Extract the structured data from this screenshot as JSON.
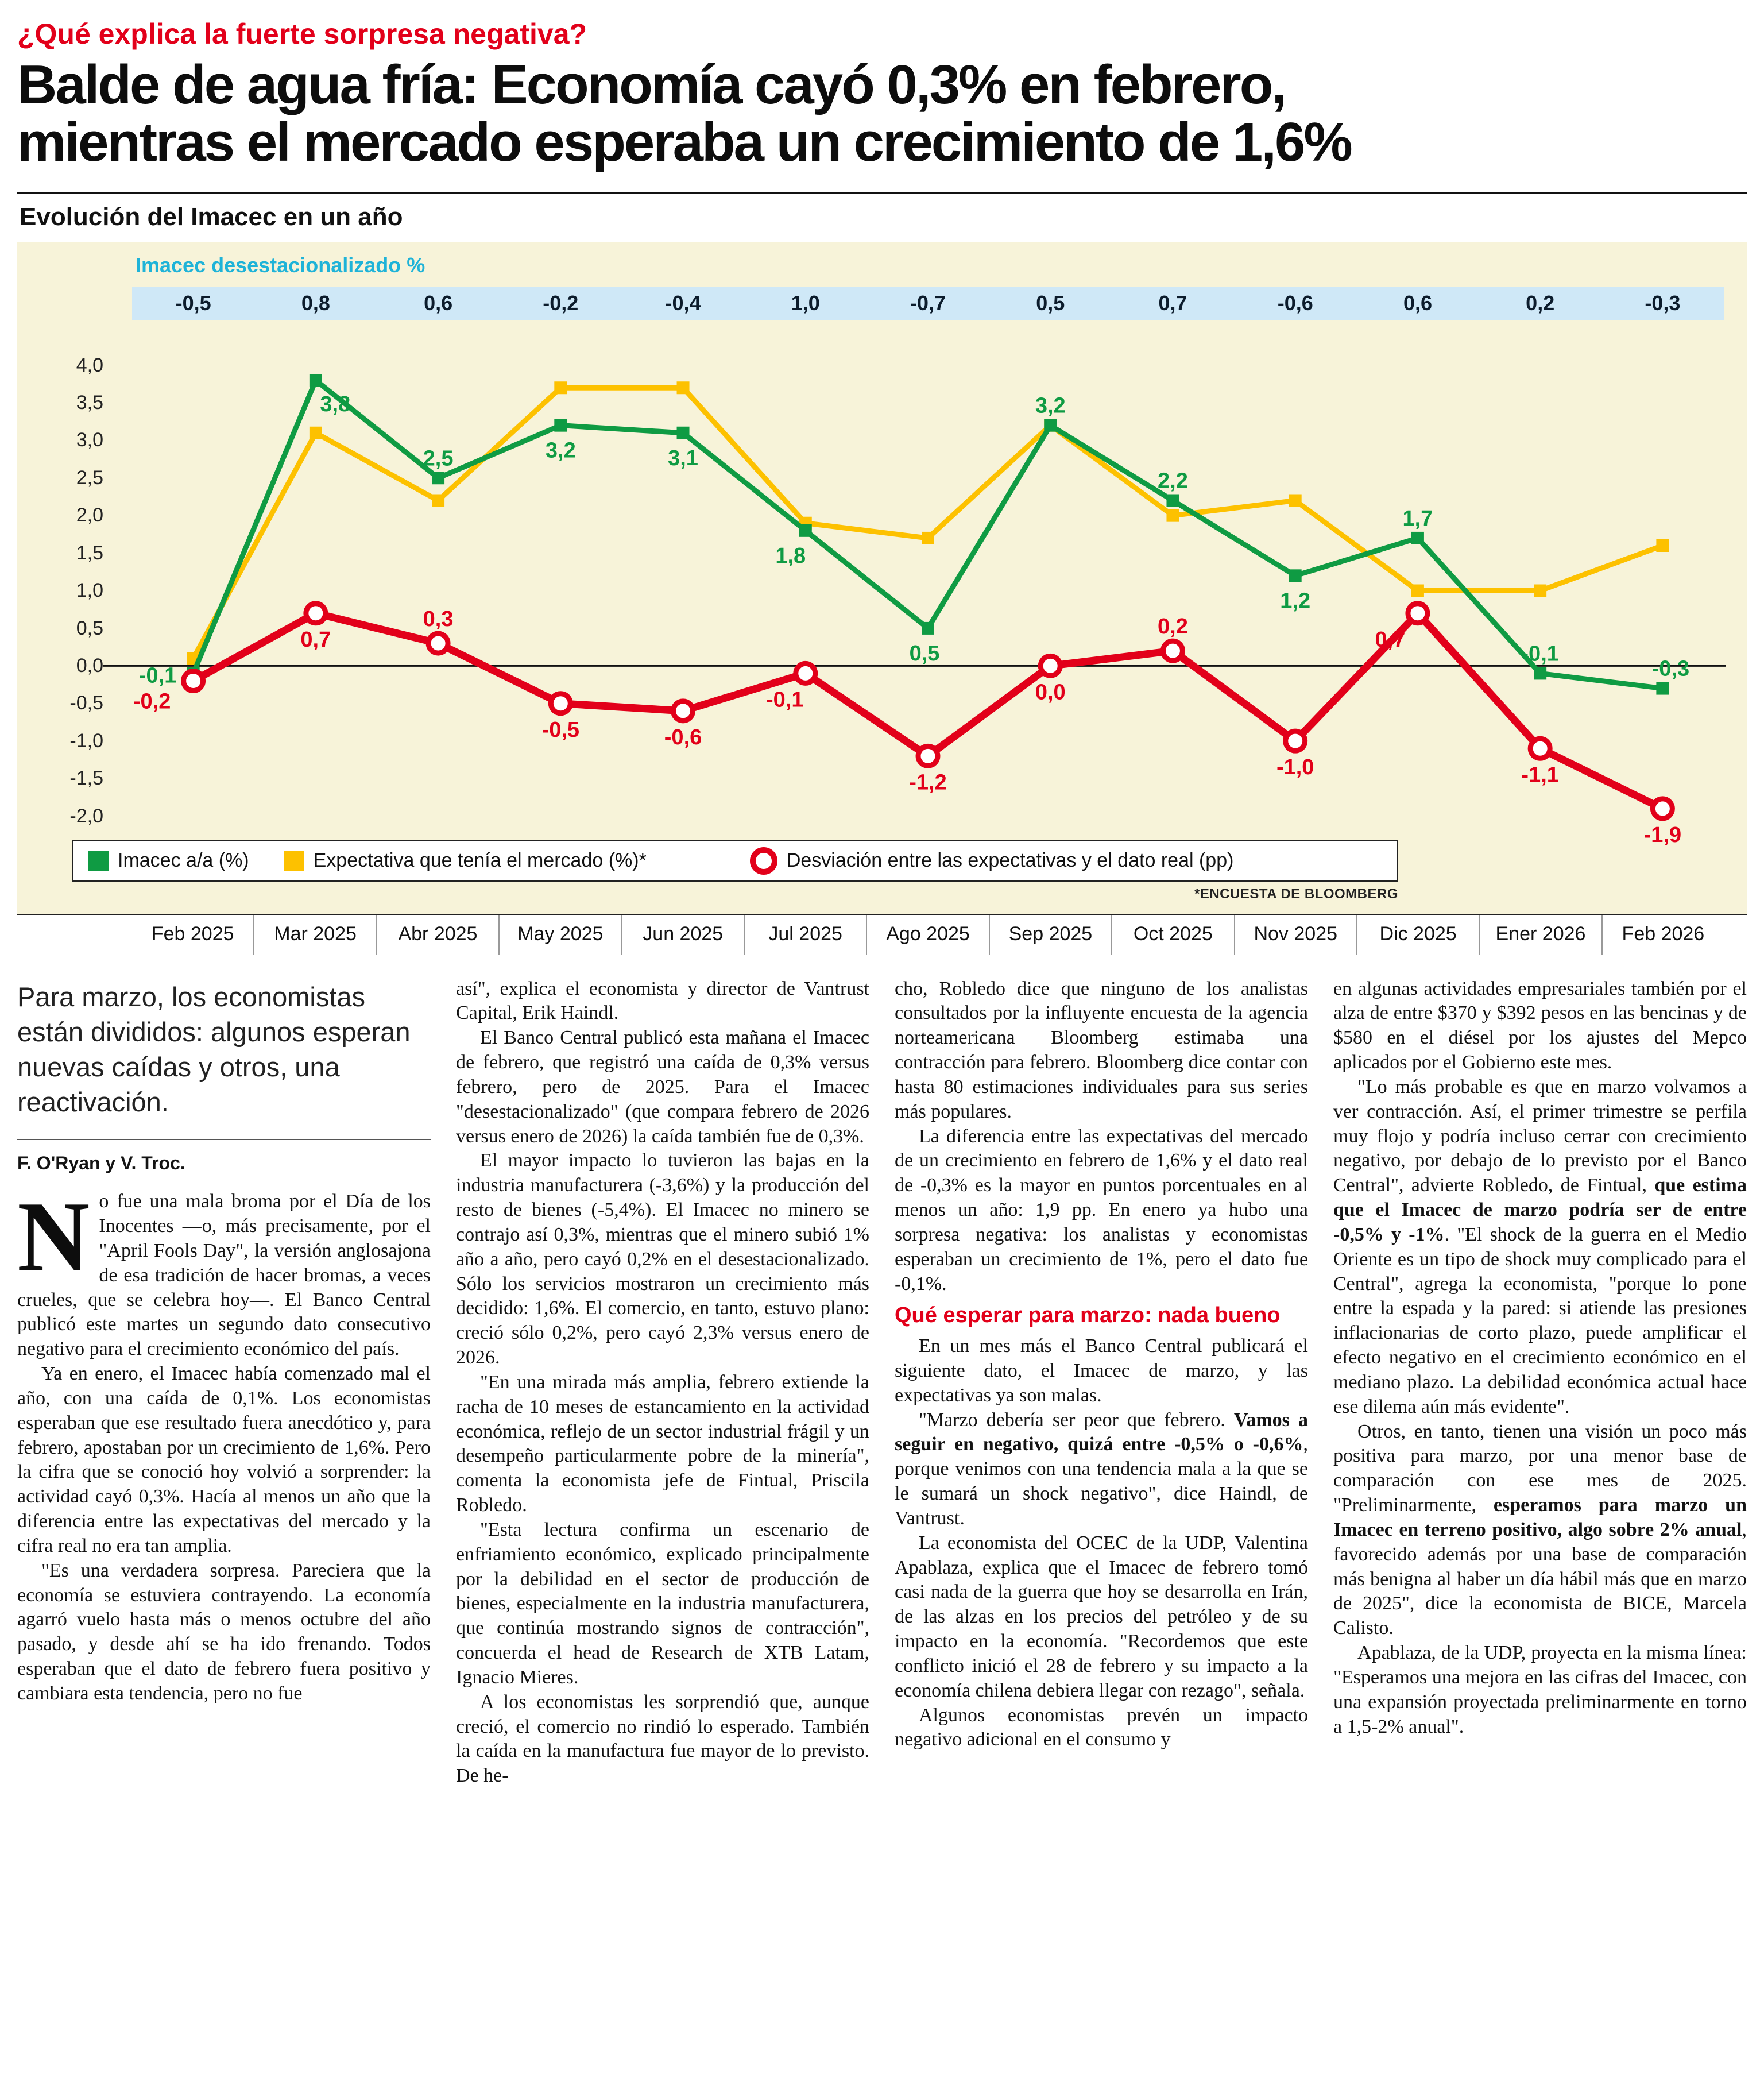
{
  "kicker": "¿Qué explica la fuerte sorpresa negativa?",
  "headline_lines": [
    "Balde de agua fría: Economía cayó 0,3% en febrero,",
    "mientras el mercado esperaba un crecimiento de 1,6%"
  ],
  "colors": {
    "accent_red": "#e2001a",
    "green": "#0f9b43",
    "yellow": "#fdc100",
    "cyan": "#1fb3d8",
    "band_blue": "#cfe8f7",
    "chart_bg": "#f7f3d9"
  },
  "chart_data": {
    "type": "line",
    "title": "Evolución del Imacec en un año",
    "strip_label": "Imacec desestacionalizado %",
    "strip_values": [
      "-0,5",
      "0,8",
      "0,6",
      "-0,2",
      "-0,4",
      "1,0",
      "-0,7",
      "0,5",
      "0,7",
      "-0,6",
      "0,6",
      "0,2",
      "-0,3"
    ],
    "categories": [
      "Feb 2025",
      "Mar 2025",
      "Abr 2025",
      "May 2025",
      "Jun 2025",
      "Jul 2025",
      "Ago 2025",
      "Sep 2025",
      "Oct 2025",
      "Nov 2025",
      "Dic 2025",
      "Ener 2026",
      "Feb 2026"
    ],
    "ylim": [
      -2.0,
      4.0
    ],
    "ytick_step": 0.5,
    "yticks": [
      "4,0",
      "3,5",
      "3,0",
      "2,5",
      "2,0",
      "1,5",
      "1,0",
      "0,5",
      "0,0",
      "-0,5",
      "-1,0",
      "-1,5",
      "-2,0"
    ],
    "grid": false,
    "legend_position": "bottom-inside",
    "series": [
      {
        "name": "Imacec a/a (%)",
        "color": "#0f9b43",
        "marker": "square",
        "values": [
          -0.1,
          3.8,
          2.5,
          3.2,
          3.1,
          1.8,
          0.5,
          3.2,
          2.2,
          1.2,
          1.7,
          -0.1,
          -0.3
        ],
        "labels": [
          "-0,1",
          "3,8",
          "2,5",
          "3,2",
          "3,1",
          "1,8",
          "0,5",
          "3,2",
          "2,2",
          "1,2",
          "1,7",
          "-0,1",
          "-0,3"
        ]
      },
      {
        "name": "Expectativa que tenía el mercado (%)*",
        "color": "#fdc100",
        "marker": "square",
        "values": [
          0.1,
          3.1,
          2.2,
          3.7,
          3.7,
          1.9,
          1.7,
          3.2,
          2.0,
          2.2,
          1.0,
          1.0,
          1.6
        ],
        "labels": [
          null,
          null,
          null,
          null,
          null,
          null,
          null,
          null,
          null,
          null,
          null,
          null,
          null
        ]
      },
      {
        "name": "Desviación entre las expectativas y el dato real (pp)",
        "color": "#e2001a",
        "marker": "ring",
        "values": [
          -0.2,
          0.7,
          0.3,
          -0.5,
          -0.6,
          -0.1,
          -1.2,
          0.0,
          0.2,
          -1.0,
          0.7,
          -1.1,
          -1.9
        ],
        "labels": [
          "-0,2",
          "0,7",
          "0,3",
          "-0,5",
          "-0,6",
          "-0,1",
          "-1,2",
          "0,0",
          "0,2",
          "-1,0",
          "0,7",
          "-1,1",
          "-1,9"
        ]
      }
    ],
    "footnote": "*ENCUESTA DE BLOOMBERG"
  },
  "article": {
    "deck": "Para marzo, los economistas están divididos: algunos esperan nuevas caídas y otros, una reactivación.",
    "byline": "F. O'Ryan y V. Troc.",
    "columns": [
      {
        "blocks": [
          {
            "type": "deck"
          },
          {
            "type": "byline"
          },
          {
            "type": "dropcap",
            "letter": "N",
            "segments": [
              {
                "t": "o fue una mala broma por el Día de los Inocentes —o, más precisamente, por el \"April Fools Day\", la versión anglosajona de esa tradición de hacer bromas, a veces crueles, que se celebra hoy—. El Banco Central publicó este martes un segundo dato consecutivo negativo para el crecimiento económico del país.",
                "b": false
              }
            ]
          },
          {
            "type": "p",
            "indent": true,
            "segments": [
              {
                "t": "Ya en enero, el Imacec había comenzado mal el año, con una caída de 0,1%. Los economistas esperaban que ese resultado fuera anecdótico y, para febrero, apostaban por un crecimiento de 1,6%. Pero la cifra que se conoció hoy volvió a sorprender: la actividad cayó 0,3%. Hacía al menos un año que la diferencia entre las expectativas del mercado y la cifra real no era tan amplia.",
                "b": false
              }
            ]
          },
          {
            "type": "p",
            "indent": true,
            "segments": [
              {
                "t": "\"Es una verdadera sorpresa. Pareciera que la economía se estuviera contrayendo. La economía agarró vuelo hasta más o menos octubre del año pasado, y desde ahí se ha ido frenando. Todos esperaban que el dato de febrero fuera positivo y cambiara esta tendencia, pero no fue",
                "b": false
              }
            ]
          }
        ]
      },
      {
        "blocks": [
          {
            "type": "p",
            "indent": false,
            "segments": [
              {
                "t": "así\", explica el economista y director de Vantrust Capital, Erik Haindl.",
                "b": false
              }
            ]
          },
          {
            "type": "p",
            "indent": true,
            "segments": [
              {
                "t": "El Banco Central publicó esta mañana el Imacec de febrero, que registró una caída de 0,3% versus febrero, pero de 2025. Para el Imacec \"desestacionalizado\" (que compara febrero de 2026 versus enero de 2026) la caída también fue de 0,3%.",
                "b": false
              }
            ]
          },
          {
            "type": "p",
            "indent": true,
            "segments": [
              {
                "t": "El mayor impacto lo tuvieron las bajas en la industria manufacturera (-3,6%) y la producción del resto de bienes (-5,4%). El Imacec no minero se contrajo así 0,3%, mientras que el minero subió 1% año a año, pero cayó 0,2% en el desestacionalizado. Sólo los servicios mostraron un crecimiento más decidido: 1,6%. El comercio, en tanto, estuvo plano: creció sólo 0,2%, pero cayó 2,3% versus enero de 2026.",
                "b": false
              }
            ]
          },
          {
            "type": "p",
            "indent": true,
            "segments": [
              {
                "t": "\"En una mirada más amplia, febrero extiende la racha de 10 meses de estancamiento en la actividad económica, reflejo de un sector industrial frágil y un desempeño particularmente pobre de la minería\", comenta la economista jefe de Fintual, Priscila Robledo.",
                "b": false
              }
            ]
          },
          {
            "type": "p",
            "indent": true,
            "segments": [
              {
                "t": "\"Esta lectura confirma un escenario de enfriamiento económico, explicado principalmente por la debilidad en el sector de producción de bienes, especialmente en la industria manufacturera, que continúa mostrando signos de contracción\", concuerda el head de Research de XTB Latam, Ignacio Mieres.",
                "b": false
              }
            ]
          },
          {
            "type": "p",
            "indent": true,
            "segments": [
              {
                "t": "A los economistas les sorprendió que, aunque creció, el comercio no rindió lo esperado. También la caída en la manufactura fue mayor de lo previsto. De he-",
                "b": false
              }
            ]
          }
        ]
      },
      {
        "blocks": [
          {
            "type": "p",
            "indent": false,
            "segments": [
              {
                "t": "cho, Robledo dice que ninguno de los analistas consultados por la influyente encuesta de la agencia norteamericana Bloomberg estimaba una contracción para febrero. Bloomberg dice contar con hasta 80 estimaciones individuales para sus series más populares.",
                "b": false
              }
            ]
          },
          {
            "type": "p",
            "indent": true,
            "segments": [
              {
                "t": "La diferencia entre las expectativas del mercado de un crecimiento en febrero de 1,6% y el dato real de -0,3% es la mayor en puntos porcentuales en al menos un año: 1,9 pp. En enero ya hubo una sorpresa negativa: los analistas y economistas esperaban un crecimiento de 1%, pero el dato fue -0,1%.",
                "b": false
              }
            ]
          },
          {
            "type": "subhead",
            "text": "Qué esperar para marzo: nada bueno"
          },
          {
            "type": "p",
            "indent": true,
            "segments": [
              {
                "t": "En un mes más el Banco Central publicará el siguiente dato, el Imacec de marzo, y las expectativas ya son malas.",
                "b": false
              }
            ]
          },
          {
            "type": "p",
            "indent": true,
            "segments": [
              {
                "t": "\"Marzo debería ser peor que febrero. ",
                "b": false
              },
              {
                "t": "Vamos a seguir en negativo, quizá entre -0,5% o -0,6%",
                "b": true
              },
              {
                "t": ", porque venimos con una tendencia mala a la que se le sumará un shock negativo\", dice Haindl, de Vantrust.",
                "b": false
              }
            ]
          },
          {
            "type": "p",
            "indent": true,
            "segments": [
              {
                "t": "La economista del OCEC de la UDP, Valentina Apablaza, explica que el Imacec de febrero tomó casi nada de la guerra que hoy se desarrolla en Irán, de las alzas en los precios del petróleo y de su impacto en la economía. \"Recordemos que este conflicto inició el 28 de febrero y su impacto a la economía chilena debiera llegar con rezago\", señala.",
                "b": false
              }
            ]
          },
          {
            "type": "p",
            "indent": true,
            "segments": [
              {
                "t": "Algunos economistas prevén un impacto negativo adicional en el consumo y",
                "b": false
              }
            ]
          }
        ]
      },
      {
        "blocks": [
          {
            "type": "p",
            "indent": false,
            "segments": [
              {
                "t": "en algunas actividades empresariales también por el alza de entre $370 y $392 pesos en las bencinas y de $580 en el diésel por los ajustes del Mepco aplicados por el Gobierno este mes.",
                "b": false
              }
            ]
          },
          {
            "type": "p",
            "indent": true,
            "segments": [
              {
                "t": "\"Lo más probable es que en marzo volvamos a ver contracción. Así, el primer trimestre se perfila muy flojo y podría incluso cerrar con crecimiento negativo, por debajo de lo previsto por el Banco Central\", advierte Robledo, de Fintual, ",
                "b": false
              },
              {
                "t": "que estima que el Imacec de marzo podría ser de entre -0,5% y -1%",
                "b": true
              },
              {
                "t": ". \"El shock de la guerra en el Medio Oriente es un tipo de shock muy complicado para el Central\", agrega la economista, \"porque lo pone entre la espada y la pared: si atiende las presiones inflacionarias de corto plazo, puede amplificar el efecto negativo en el crecimiento económico en el mediano plazo. La debilidad económica actual hace ese dilema aún más evidente\".",
                "b": false
              }
            ]
          },
          {
            "type": "p",
            "indent": true,
            "segments": [
              {
                "t": "Otros, en tanto, tienen una visión un poco más positiva para marzo, por una menor base de comparación con ese mes de 2025. \"Preliminarmente, ",
                "b": false
              },
              {
                "t": "esperamos para marzo un Imacec en terreno positivo, algo sobre 2% anual",
                "b": true
              },
              {
                "t": ", favorecido además por una base de comparación más benigna al haber un día hábil más que en marzo de 2025\", dice la economista de BICE, Marcela Calisto.",
                "b": false
              }
            ]
          },
          {
            "type": "p",
            "indent": true,
            "segments": [
              {
                "t": "Apablaza, de la UDP, proyecta en la misma línea: \"Esperamos una mejora en las cifras del Imacec, con una expansión proyectada preliminarmente en torno a 1,5-2% anual\".",
                "b": false
              }
            ]
          }
        ]
      }
    ]
  }
}
